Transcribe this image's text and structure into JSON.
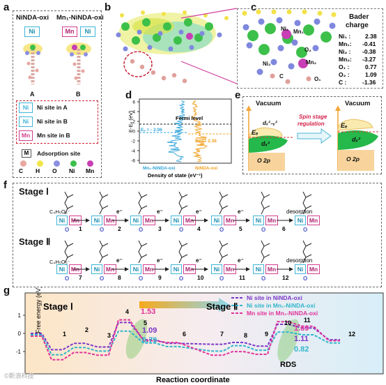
{
  "panel_labels": {
    "a": "a",
    "b": "b",
    "c": "c",
    "d": "d",
    "e": "e",
    "f": "f",
    "g": "g"
  },
  "a": {
    "col_a_title": "NiNDA-oxi",
    "col_b_title": "Mn₁-NiNDA-oxi",
    "box_a": "Ni",
    "box_b1": "Mn",
    "box_b2": "Ni",
    "struct_a": "A",
    "struct_b": "B",
    "legend": [
      {
        "tag": "Ni",
        "color": "#3fb6d8",
        "text": "Ni site in A"
      },
      {
        "tag": "Ni",
        "color": "#3fb6d8",
        "text": "Ni site in B"
      },
      {
        "tag": "Mn",
        "color": "#d23d8e",
        "text": "Mn site in B"
      }
    ],
    "ads_tag": "M",
    "ads_text": "Adsorption site",
    "atoms": [
      {
        "sym": "C",
        "color": "#e8a6a0"
      },
      {
        "sym": "H",
        "color": "#f0e64a"
      },
      {
        "sym": "O",
        "color": "#8b8fe0"
      },
      {
        "sym": "Ni",
        "color": "#3cc04a"
      },
      {
        "sym": "Mn",
        "color": "#c83fb5"
      }
    ]
  },
  "c": {
    "bader_title_1": "Bader",
    "bader_title_2": "charge",
    "labels": [
      "Ni₁",
      "Mn₁",
      "O₂",
      "Ni₂",
      "Mn₂",
      "C",
      "O₁"
    ],
    "charges": [
      {
        "atom": "Ni₁ :",
        "value": "2.38"
      },
      {
        "atom": "Mn₁:",
        "value": "-0.41"
      },
      {
        "atom": "Ni₂ :",
        "value": "-0.38"
      },
      {
        "atom": "Mn₂:",
        "value": "-3.27"
      },
      {
        "atom": "O₁ :",
        "value": "0.77"
      },
      {
        "atom": "O₂ :",
        "value": "1.09"
      },
      {
        "atom": "C   :",
        "value": "-1.36"
      }
    ]
  },
  "d": {
    "ylabel": "E-Eₑ (eV)",
    "xlabel": "Density of state (eV⁻¹)",
    "fermi": "Fermi level",
    "ed_blue": "Eₑ = - 2.06",
    "ed_orange": "Eₑ = - 2.36",
    "legend_blue": "Mn₁-NiNDA-oxi",
    "legend_orange": "NiNDA-oxi",
    "yticks": [
      "6",
      "4",
      "2",
      "0",
      "-2",
      "-4",
      "-6"
    ]
  },
  "e": {
    "vac1": "Vacuum",
    "vac2": "Vacuum",
    "ef1": "Eₑ",
    "ef2": "Eₑ",
    "dx1": "dₓ²₋ᵧ²",
    "dz1": "dₓ²",
    "o2p1": "O 2p",
    "o2p2": "O 2p",
    "arrow1": "Spin stage",
    "arrow2": "regulation"
  },
  "f": {
    "stage1": "Stage Ⅰ",
    "stage2": "Stage Ⅱ",
    "reagent1": "C₄H₅O₃⁻",
    "reagent2": "C₄H₅O₃⁻",
    "electron": "e⁻",
    "desorption": "desorption",
    "steps1": [
      "1",
      "2",
      "3",
      "4",
      "5",
      "6"
    ],
    "steps2": [
      "7",
      "8",
      "9",
      "10",
      "11",
      "12"
    ],
    "ni": "Ni",
    "mn": "Mn",
    "o": "O"
  },
  "g": {
    "ylabel": "Free energy (eV)",
    "xlabel": "Reaction coordinate",
    "stage1": "Stage Ⅰ",
    "stage2": "Stage Ⅱ",
    "rds": "RDS",
    "yticks": [
      "1",
      "0",
      "-1"
    ],
    "legend": [
      {
        "text": "Ni site in NiNDA-oxi",
        "color": "#7a35c9"
      },
      {
        "text": "Ni  site in Mn₁-NiNDA-oxi",
        "color": "#2fb6cc"
      },
      {
        "text": "Mn  site in Mn₁-NiNDA-oxi",
        "color": "#e0339a"
      }
    ],
    "barrier1": {
      "mn": "1.53",
      "ni_a": "1.09",
      "ni_b": "0.79"
    },
    "barrier2": {
      "mn": "1.69",
      "ni_a": "1.11",
      "ni_b": "0.82"
    },
    "step_nums": [
      "1",
      "2",
      "3",
      "4",
      "5",
      "6",
      "7",
      "8",
      "9",
      "10",
      "11",
      "12"
    ]
  },
  "watermark": "©新浪科技"
}
